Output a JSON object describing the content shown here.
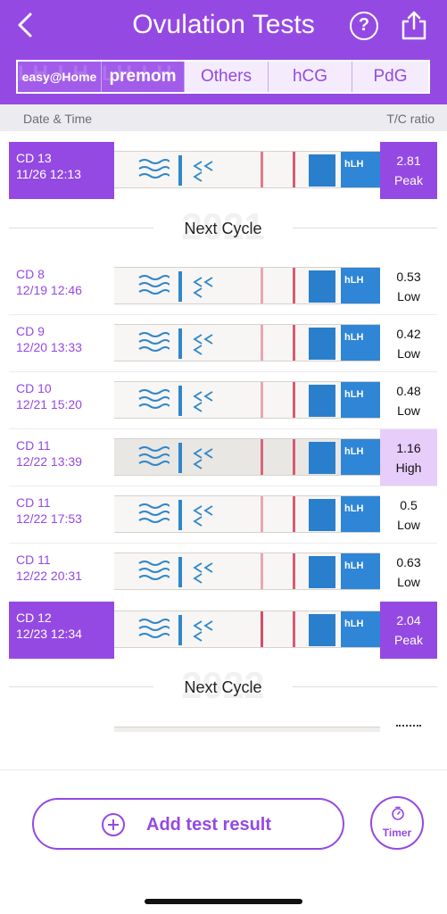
{
  "header": {
    "title": "Ovulation Tests",
    "help_label": "?"
  },
  "tabs": [
    {
      "label": "easy@Home",
      "selected": true
    },
    {
      "label": "premom",
      "selected": false
    },
    {
      "label": "Others",
      "selected": false
    },
    {
      "label": "hCG",
      "selected": false
    },
    {
      "label": "PdG",
      "selected": false
    }
  ],
  "columns": {
    "left": "Date & Time",
    "right": "T/C ratio"
  },
  "divider_2021": {
    "text": "Next Cycle",
    "year": "2021"
  },
  "divider_2022": {
    "text": "Next Cycle",
    "year": "2022"
  },
  "rows": [
    {
      "cd": "CD 13",
      "datetime": "11/26 12:13",
      "ratio": "2.81",
      "level": "Peak"
    },
    {
      "cd": "CD 8",
      "datetime": "12/19 12:46",
      "ratio": "0.53",
      "level": "Low"
    },
    {
      "cd": "CD 9",
      "datetime": "12/20 13:33",
      "ratio": "0.42",
      "level": "Low"
    },
    {
      "cd": "CD 10",
      "datetime": "12/21 15:20",
      "ratio": "0.48",
      "level": "Low"
    },
    {
      "cd": "CD 11",
      "datetime": "12/22 13:39",
      "ratio": "1.16",
      "level": "High"
    },
    {
      "cd": "CD 11",
      "datetime": "12/22 17:53",
      "ratio": "0.5",
      "level": "Low"
    },
    {
      "cd": "CD 11",
      "datetime": "12/22 20:31",
      "ratio": "0.63",
      "level": "Low"
    },
    {
      "cd": "CD 12",
      "datetime": "12/23 12:34",
      "ratio": "2.04",
      "level": "Peak"
    }
  ],
  "strip_label": "hLH",
  "bottom": {
    "add_label": "Add test result",
    "timer_label": "Timer"
  },
  "colors": {
    "accent": "#9549e3",
    "high_bg": "#e6cdfa"
  }
}
